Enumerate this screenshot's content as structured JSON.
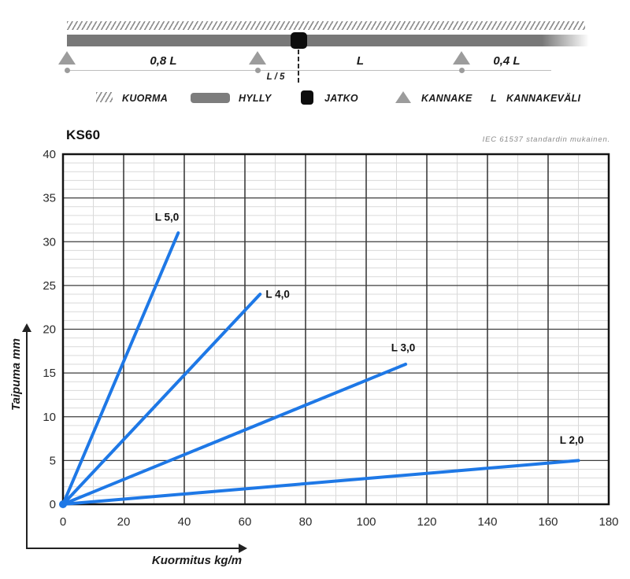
{
  "diagram": {
    "spans": {
      "left": "0,8 L",
      "joint_offset": "L / 5",
      "middle": "L",
      "right": "0,4 L"
    }
  },
  "legend": {
    "items": [
      {
        "icon": "hatch-icon",
        "label": "KUORMA"
      },
      {
        "icon": "shelf-icon",
        "label": "HYLLY"
      },
      {
        "icon": "joint-icon",
        "label": "JATKO"
      },
      {
        "icon": "support-icon",
        "label": "KANNAKE"
      },
      {
        "icon": "length-symbol",
        "symbol": "L",
        "label": "KANNAKEVÄLI"
      }
    ]
  },
  "chart": {
    "title": "KS60",
    "note": "IEC 61537 standardin mukainen."
  },
  "chart_data": {
    "type": "line",
    "title": "KS60",
    "xlabel": "Kuormitus kg/m",
    "ylabel": "Taipuma mm",
    "xlim": [
      0,
      180
    ],
    "ylim": [
      0,
      40
    ],
    "x_major": 20,
    "x_minor": 10,
    "y_major": 5,
    "y_minor": 1,
    "x_ticks": [
      0,
      20,
      40,
      60,
      80,
      100,
      120,
      140,
      160,
      180
    ],
    "y_ticks": [
      0,
      5,
      10,
      15,
      20,
      25,
      30,
      35,
      40
    ],
    "grid": true,
    "legend_position": "inline-labels",
    "line_color": "#1e78e6",
    "grid_minor_color": "#d9d9d9",
    "grid_major_color": "#3d3d3d",
    "border_color": "#141414",
    "series": [
      {
        "name": "L 5,0",
        "points": [
          [
            0,
            0
          ],
          [
            38,
            31
          ]
        ],
        "label_at": [
          34.3,
          32.4
        ]
      },
      {
        "name": "L 4,0",
        "points": [
          [
            0,
            0
          ],
          [
            65,
            24
          ]
        ],
        "label_at": [
          70.8,
          23.6
        ]
      },
      {
        "name": "L 3,0",
        "points": [
          [
            0,
            0
          ],
          [
            113,
            16
          ]
        ],
        "label_at": [
          112.2,
          17.5
        ]
      },
      {
        "name": "L 2,0",
        "points": [
          [
            0,
            0
          ],
          [
            170,
            5
          ]
        ],
        "label_at": [
          167.8,
          6.9
        ]
      }
    ]
  }
}
